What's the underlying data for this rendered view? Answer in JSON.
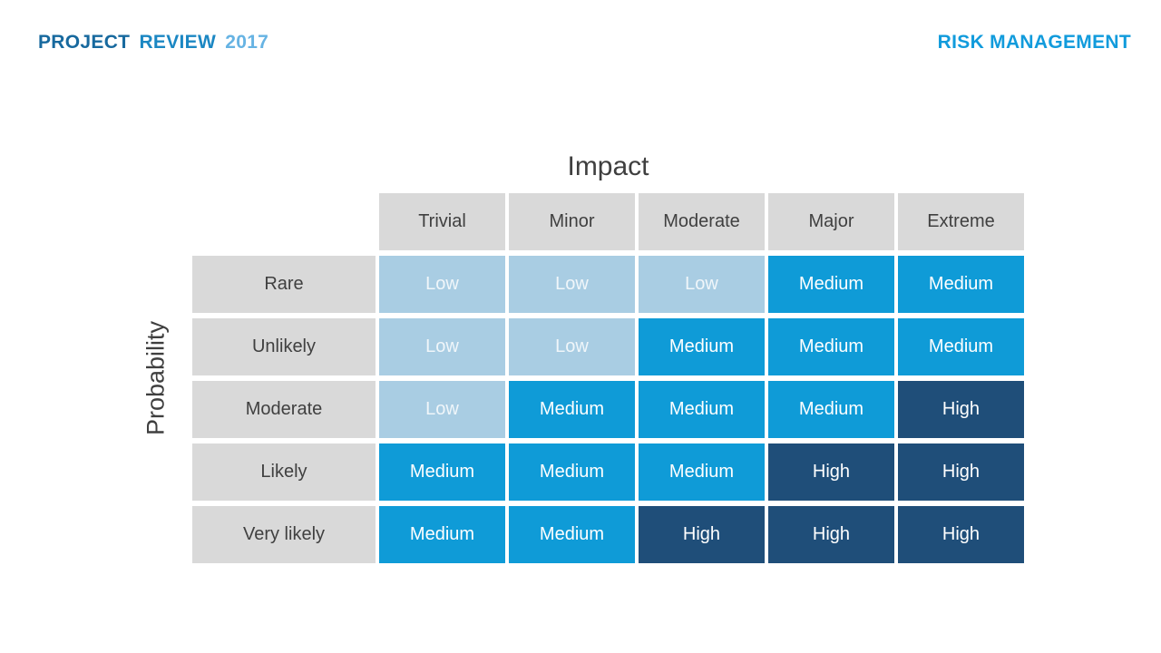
{
  "header": {
    "left_title": {
      "part1": "PROJECT",
      "part2": "REVIEW",
      "part3": "2017"
    },
    "right_title": "RISK MANAGEMENT"
  },
  "matrix": {
    "impact_label": "Impact",
    "probability_label": "Probability",
    "columns": [
      "Trivial",
      "Minor",
      "Moderate",
      "Major",
      "Extreme"
    ],
    "rows": [
      "Rare",
      "Unlikely",
      "Moderate",
      "Likely",
      "Very likely"
    ],
    "cells": [
      [
        "low",
        "low",
        "low",
        "medium",
        "medium"
      ],
      [
        "low",
        "low",
        "medium",
        "medium",
        "medium"
      ],
      [
        "low",
        "medium",
        "medium",
        "medium",
        "high"
      ],
      [
        "medium",
        "medium",
        "medium",
        "high",
        "high"
      ],
      [
        "medium",
        "medium",
        "high",
        "high",
        "high"
      ]
    ],
    "levels": {
      "low": "Low",
      "medium": "Medium",
      "high": "High"
    }
  },
  "colors": {
    "low": "#a9cde3",
    "medium": "#0f9bd7",
    "high": "#1f4e79",
    "label_bg": "#d9d9d9",
    "label_text": "#404040",
    "title_project": "#17699e",
    "title_review": "#1b87c3",
    "title_year": "#66b3e3",
    "title_right": "#119bdc"
  },
  "chart_data": {
    "type": "heatmap",
    "title": "",
    "xlabel": "Impact",
    "ylabel": "Probability",
    "x_categories": [
      "Trivial",
      "Minor",
      "Moderate",
      "Major",
      "Extreme"
    ],
    "y_categories": [
      "Rare",
      "Unlikely",
      "Moderate",
      "Likely",
      "Very likely"
    ],
    "values": [
      [
        "Low",
        "Low",
        "Low",
        "Medium",
        "Medium"
      ],
      [
        "Low",
        "Low",
        "Medium",
        "Medium",
        "Medium"
      ],
      [
        "Low",
        "Medium",
        "Medium",
        "Medium",
        "High"
      ],
      [
        "Medium",
        "Medium",
        "Medium",
        "High",
        "High"
      ],
      [
        "Medium",
        "Medium",
        "High",
        "High",
        "High"
      ]
    ],
    "legend": [
      {
        "label": "Low",
        "color": "#a9cde3"
      },
      {
        "label": "Medium",
        "color": "#0f9bd7"
      },
      {
        "label": "High",
        "color": "#1f4e79"
      }
    ],
    "legend_position": "none",
    "grid": false
  }
}
